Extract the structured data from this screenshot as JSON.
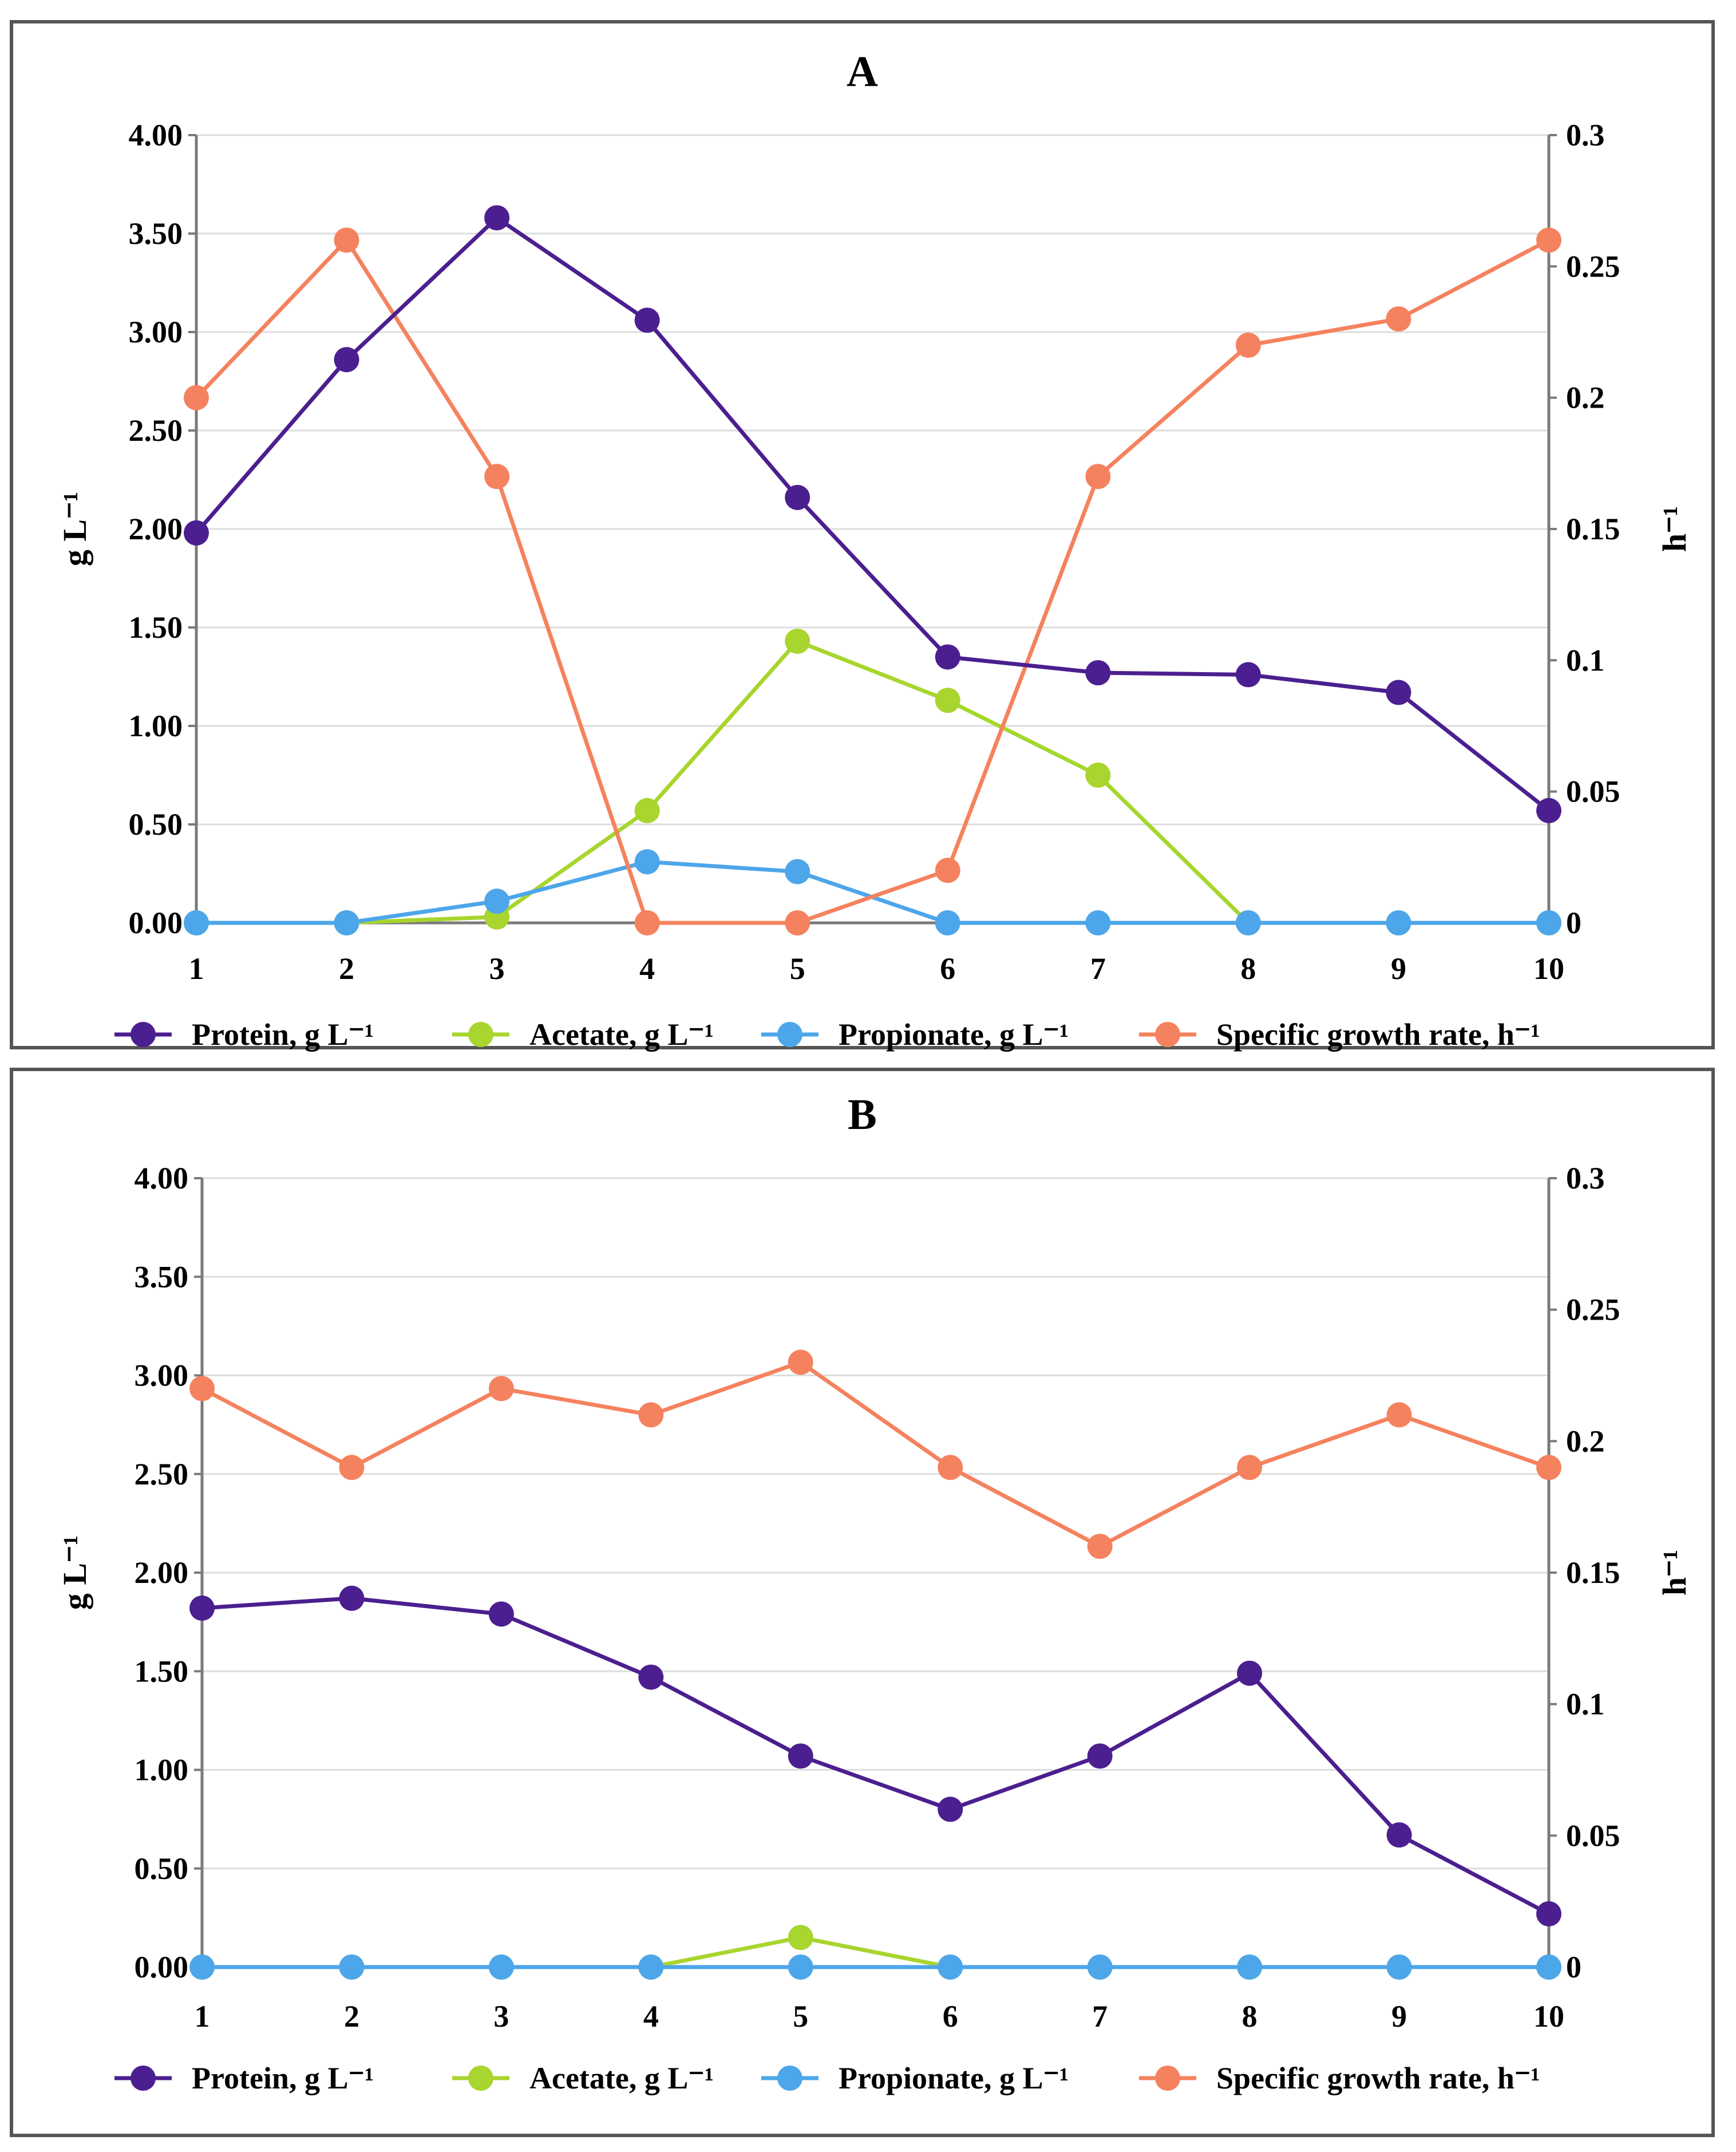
{
  "chart_data": [
    {
      "type": "line",
      "title": "A",
      "xlabel": "",
      "ylabel_left": "g L⁻¹",
      "ylabel_right": "h⁻¹",
      "categories": [
        "1",
        "2",
        "3",
        "4",
        "5",
        "6",
        "7",
        "8",
        "9",
        "10"
      ],
      "ylim_left": [
        0,
        4
      ],
      "ylim_right": [
        0,
        0.3
      ],
      "yticks_left": [
        "0.00",
        "0.50",
        "1.00",
        "1.50",
        "2.00",
        "2.50",
        "3.00",
        "3.50",
        "4.00"
      ],
      "yticks_right": [
        "0",
        "0.05",
        "0.1",
        "0.15",
        "0.2",
        "0.25",
        "0.3"
      ],
      "grid": true,
      "legend_position": "bottom",
      "series": [
        {
          "name": "Protein, g L⁻¹",
          "axis": "left",
          "color": "#4b1f8f",
          "values": [
            1.98,
            2.86,
            3.58,
            3.06,
            2.16,
            1.35,
            1.27,
            1.26,
            1.17,
            0.57
          ]
        },
        {
          "name": "Acetate, g L⁻¹",
          "axis": "left",
          "color": "#a8d52e",
          "values": [
            0,
            0,
            0.03,
            0.57,
            1.43,
            1.13,
            0.75,
            0,
            0,
            0
          ]
        },
        {
          "name": "Propionate, g L⁻¹",
          "axis": "left",
          "color": "#4da6ea",
          "values": [
            0,
            0,
            0.11,
            0.31,
            0.26,
            0,
            0,
            0,
            0,
            0
          ]
        },
        {
          "name": "Specific growth rate, h⁻¹",
          "axis": "right",
          "color": "#f5825e",
          "values": [
            0.2,
            0.26,
            0.17,
            0,
            0,
            0.02,
            0.17,
            0.22,
            0.23,
            0.26
          ]
        }
      ]
    },
    {
      "type": "line",
      "title": "B",
      "xlabel": "",
      "ylabel_left": "g L⁻¹",
      "ylabel_right": "h⁻¹",
      "categories": [
        "1",
        "2",
        "3",
        "4",
        "5",
        "6",
        "7",
        "8",
        "9",
        "10"
      ],
      "ylim_left": [
        0,
        4
      ],
      "ylim_right": [
        0,
        0.3
      ],
      "yticks_left": [
        "0.00",
        "0.50",
        "1.00",
        "1.50",
        "2.00",
        "2.50",
        "3.00",
        "3.50",
        "4.00"
      ],
      "yticks_right": [
        "0",
        "0.05",
        "0.1",
        "0.15",
        "0.2",
        "0.25",
        "0.3"
      ],
      "grid": true,
      "legend_position": "bottom",
      "series": [
        {
          "name": "Protein, g L⁻¹",
          "axis": "left",
          "color": "#4b1f8f",
          "values": [
            1.82,
            1.87,
            1.79,
            1.47,
            1.07,
            0.8,
            1.07,
            1.49,
            0.67,
            0.27
          ]
        },
        {
          "name": "Acetate, g L⁻¹",
          "axis": "left",
          "color": "#a8d52e",
          "values": [
            0,
            0,
            0,
            0,
            0.15,
            0,
            0,
            0,
            0,
            0
          ]
        },
        {
          "name": "Propionate, g L⁻¹",
          "axis": "left",
          "color": "#4da6ea",
          "values": [
            0,
            0,
            0,
            0,
            0,
            0,
            0,
            0,
            0,
            0
          ]
        },
        {
          "name": "Specific growth rate, h⁻¹",
          "axis": "right",
          "color": "#f5825e",
          "values": [
            0.22,
            0.19,
            0.22,
            0.21,
            0.23,
            0.19,
            0.16,
            0.19,
            0.21,
            0.19
          ]
        }
      ]
    }
  ]
}
